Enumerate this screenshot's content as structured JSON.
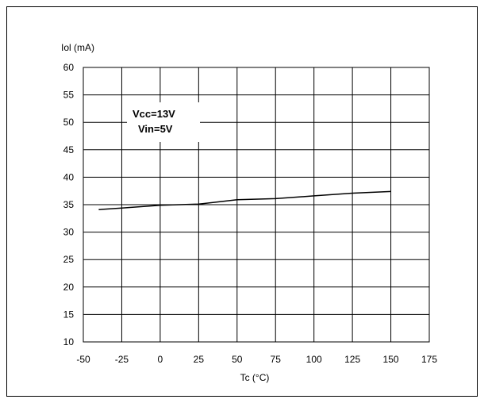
{
  "chart_data": {
    "type": "line",
    "ylabel": "Iol (mA)",
    "xlabel": "Tc (°C)",
    "xlim": [
      -50,
      175
    ],
    "ylim": [
      10,
      60
    ],
    "x_ticks": [
      -50,
      -25,
      0,
      25,
      50,
      75,
      100,
      125,
      150,
      175
    ],
    "y_ticks": [
      10,
      15,
      20,
      25,
      30,
      35,
      40,
      45,
      50,
      55,
      60
    ],
    "grid": true,
    "annotations": [
      "Vcc=13V",
      "Vin=5V"
    ],
    "series": [
      {
        "x": [
          -40,
          -25,
          0,
          25,
          50,
          75,
          100,
          125,
          150
        ],
        "y": [
          34.1,
          34.4,
          34.9,
          35.1,
          35.9,
          36.1,
          36.6,
          37.1,
          37.4
        ]
      }
    ]
  }
}
